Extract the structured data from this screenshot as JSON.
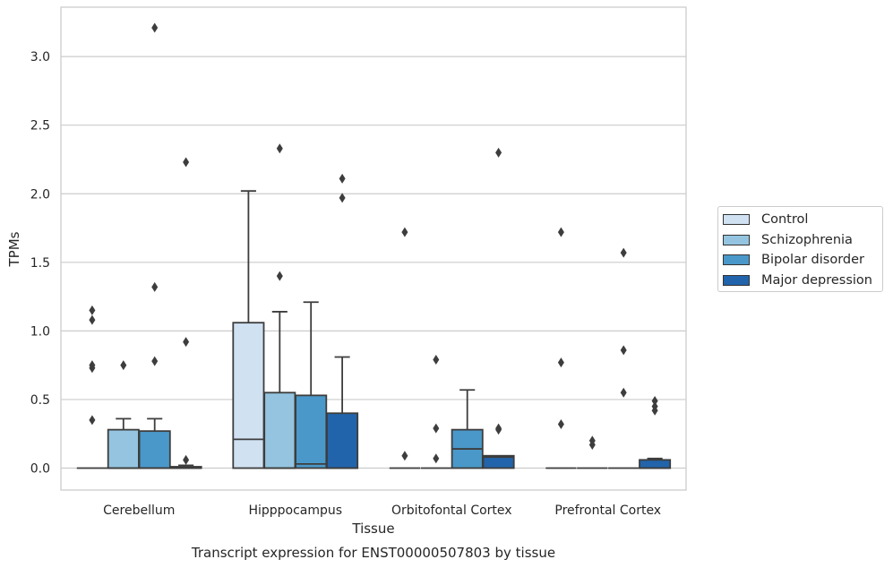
{
  "chart_data": {
    "type": "boxplot",
    "title": "Transcript expression for ENST00000507803 by tissue",
    "xlabel": "Tissue",
    "ylabel": "TPMs",
    "ylim": [
      -0.16,
      3.36
    ],
    "yticks": [
      0.0,
      0.5,
      1.0,
      1.5,
      2.0,
      2.5,
      3.0
    ],
    "ytick_labels": [
      "0.0",
      "0.5",
      "1.0",
      "1.5",
      "2.0",
      "2.5",
      "3.0"
    ],
    "grid": "horizontal",
    "legend_placement": "center-right, outside plot",
    "categories": [
      "Cerebellum",
      "Hipppocampus",
      "Orbitofontal Cortex",
      "Prefrontal Cortex"
    ],
    "series": [
      {
        "name": "Control",
        "color": "#d0e1f2",
        "boxes": [
          {
            "q1": 0,
            "median": 0,
            "q3": 0,
            "whisker_low": 0,
            "whisker_high": 0,
            "outliers": [
              0.35,
              0.73,
              0.75,
              1.08,
              1.15
            ]
          },
          {
            "q1": 0,
            "median": 0.21,
            "q3": 1.06,
            "whisker_low": 0,
            "whisker_high": 2.02,
            "outliers": []
          },
          {
            "q1": 0,
            "median": 0,
            "q3": 0,
            "whisker_low": 0,
            "whisker_high": 0,
            "outliers": [
              0.09,
              1.72
            ]
          },
          {
            "q1": 0,
            "median": 0,
            "q3": 0,
            "whisker_low": 0,
            "whisker_high": 0,
            "outliers": [
              0.32,
              0.77,
              1.72
            ]
          }
        ]
      },
      {
        "name": "Schizophrenia",
        "color": "#94c4df",
        "boxes": [
          {
            "q1": 0,
            "median": 0,
            "q3": 0.28,
            "whisker_low": 0,
            "whisker_high": 0.36,
            "outliers": [
              0.75
            ]
          },
          {
            "q1": 0,
            "median": 0,
            "q3": 0.55,
            "whisker_low": 0,
            "whisker_high": 1.14,
            "outliers": [
              1.4,
              2.33
            ]
          },
          {
            "q1": 0,
            "median": 0,
            "q3": 0,
            "whisker_low": 0,
            "whisker_high": 0,
            "outliers": [
              0.07,
              0.29,
              0.79
            ]
          },
          {
            "q1": 0,
            "median": 0,
            "q3": 0,
            "whisker_low": 0,
            "whisker_high": 0,
            "outliers": [
              0.17,
              0.2
            ]
          }
        ]
      },
      {
        "name": "Bipolar disorder",
        "color": "#4a98c9",
        "boxes": [
          {
            "q1": 0,
            "median": 0,
            "q3": 0.27,
            "whisker_low": 0,
            "whisker_high": 0.36,
            "outliers": [
              0.78,
              1.32,
              3.21
            ]
          },
          {
            "q1": 0,
            "median": 0.03,
            "q3": 0.53,
            "whisker_low": 0,
            "whisker_high": 1.21,
            "outliers": []
          },
          {
            "q1": 0,
            "median": 0.14,
            "q3": 0.28,
            "whisker_low": 0,
            "whisker_high": 0.57,
            "outliers": []
          },
          {
            "q1": 0,
            "median": 0,
            "q3": 0,
            "whisker_low": 0,
            "whisker_high": 0,
            "outliers": [
              0.55,
              0.86,
              1.57
            ]
          }
        ]
      },
      {
        "name": "Major depression",
        "color": "#2164ab",
        "boxes": [
          {
            "q1": 0,
            "median": 0,
            "q3": 0.01,
            "whisker_low": 0,
            "whisker_high": 0.02,
            "outliers": [
              0.06,
              0.92,
              2.23
            ]
          },
          {
            "q1": 0,
            "median": 0,
            "q3": 0.4,
            "whisker_low": 0,
            "whisker_high": 0.81,
            "outliers": [
              1.97,
              2.11
            ]
          },
          {
            "q1": 0,
            "median": 0.08,
            "q3": 0.09,
            "whisker_low": 0,
            "whisker_high": 0.09,
            "outliers": [
              0.28,
              0.29,
              2.3
            ]
          },
          {
            "q1": 0,
            "median": 0,
            "q3": 0.06,
            "whisker_low": 0,
            "whisker_high": 0.07,
            "outliers": [
              0.42,
              0.45,
              0.49
            ]
          }
        ]
      }
    ]
  }
}
